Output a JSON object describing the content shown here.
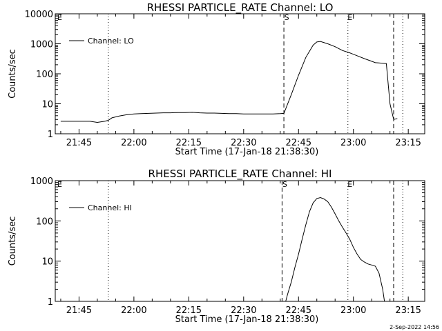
{
  "footer": {
    "date": "2-Sep-2022 14:56"
  },
  "chart_data": [
    {
      "type": "line",
      "title": "RHESSI PARTICLE_RATE Channel: LO",
      "xlabel": "Start Time (17-Jan-18 21:38:30)",
      "ylabel": "Counts/sec",
      "yscale": "log",
      "ylim": [
        1,
        10000
      ],
      "xlim": [
        "21:38:30",
        "23:19:30"
      ],
      "x_ticks": [
        "21:45",
        "22:00",
        "22:15",
        "22:30",
        "22:45",
        "23:00",
        "23:15"
      ],
      "y_ticks": [
        "1",
        "10",
        "100",
        "1000",
        "10000"
      ],
      "legend": {
        "entries": [
          "Channel: LO"
        ],
        "position": "top-left"
      },
      "markers": {
        "corner_label": "E",
        "dashed": [
          {
            "time": "22:41:00",
            "label": "S"
          },
          {
            "time": "23:11:00",
            "label": ""
          }
        ],
        "dotted": [
          {
            "time": "21:53:00",
            "label": ""
          },
          {
            "time": "22:58:30",
            "label": "E"
          },
          {
            "time": "23:13:30",
            "label": ""
          }
        ]
      },
      "series": [
        {
          "name": "Channel: LO",
          "x": [
            "21:40",
            "21:42",
            "21:44",
            "21:46",
            "21:48",
            "21:50",
            "21:52",
            "21:53",
            "21:54",
            "21:56",
            "21:58",
            "22:00",
            "22:02",
            "22:04",
            "22:06",
            "22:08",
            "22:10",
            "22:12",
            "22:14",
            "22:16",
            "22:18",
            "22:20",
            "22:22",
            "22:24",
            "22:26",
            "22:28",
            "22:30",
            "22:32",
            "22:34",
            "22:36",
            "22:38",
            "22:40",
            "22:41",
            "22:43",
            "22:45",
            "22:47",
            "22:49",
            "22:50",
            "22:51",
            "22:53",
            "22:55",
            "22:57",
            "22:59",
            "23:01",
            "23:03",
            "23:05",
            "23:06",
            "23:07",
            "23:08",
            "23:09",
            "23:10",
            "23:11",
            "23:12"
          ],
          "values": [
            2.6,
            2.6,
            2.6,
            2.6,
            2.6,
            2.4,
            2.6,
            2.8,
            3.4,
            3.9,
            4.3,
            4.6,
            4.7,
            4.8,
            4.9,
            5,
            5,
            5.1,
            5.1,
            5.2,
            5,
            4.9,
            4.9,
            4.8,
            4.7,
            4.7,
            4.6,
            4.6,
            4.6,
            4.6,
            4.6,
            4.7,
            4.8,
            20,
            90,
            350,
            900,
            1150,
            1200,
            1000,
            800,
            600,
            500,
            400,
            320,
            260,
            235,
            230,
            225,
            220,
            10,
            3,
            3.2
          ]
        }
      ]
    },
    {
      "type": "line",
      "title": "RHESSI PARTICLE_RATE Channel: HI",
      "xlabel": "Start Time (17-Jan-18 21:38:30)",
      "ylabel": "Counts/sec",
      "yscale": "log",
      "ylim": [
        1,
        1000
      ],
      "xlim": [
        "21:38:30",
        "23:19:30"
      ],
      "x_ticks": [
        "21:45",
        "22:00",
        "22:15",
        "22:30",
        "22:45",
        "23:00",
        "23:15"
      ],
      "y_ticks": [
        "1",
        "10",
        "100",
        "1000"
      ],
      "legend": {
        "entries": [
          "Channel: HI"
        ],
        "position": "top-left"
      },
      "markers": {
        "corner_label": "E",
        "dashed": [
          {
            "time": "22:40:30",
            "label": "S"
          },
          {
            "time": "23:11:00",
            "label": ""
          }
        ],
        "dotted": [
          {
            "time": "21:53:00",
            "label": ""
          },
          {
            "time": "22:58:30",
            "label": "E"
          },
          {
            "time": "23:13:30",
            "label": ""
          }
        ]
      },
      "series": [
        {
          "name": "Channel: HI",
          "x": [
            "22:41:30",
            "22:42",
            "22:43",
            "22:44",
            "22:45",
            "22:46",
            "22:47",
            "22:48",
            "22:49",
            "22:50",
            "22:51",
            "22:52",
            "22:53",
            "22:54",
            "22:55",
            "22:56",
            "22:57",
            "22:58",
            "22:59",
            "23:00",
            "23:01",
            "23:02",
            "23:03",
            "23:04",
            "23:05",
            "23:06",
            "23:07",
            "23:08",
            "23:08:30"
          ],
          "values": [
            1,
            1.5,
            3,
            7,
            15,
            35,
            80,
            170,
            280,
            360,
            380,
            350,
            300,
            220,
            150,
            100,
            70,
            50,
            35,
            22,
            15,
            11,
            9.5,
            8.5,
            8,
            7.5,
            5,
            2,
            1
          ]
        }
      ]
    }
  ]
}
